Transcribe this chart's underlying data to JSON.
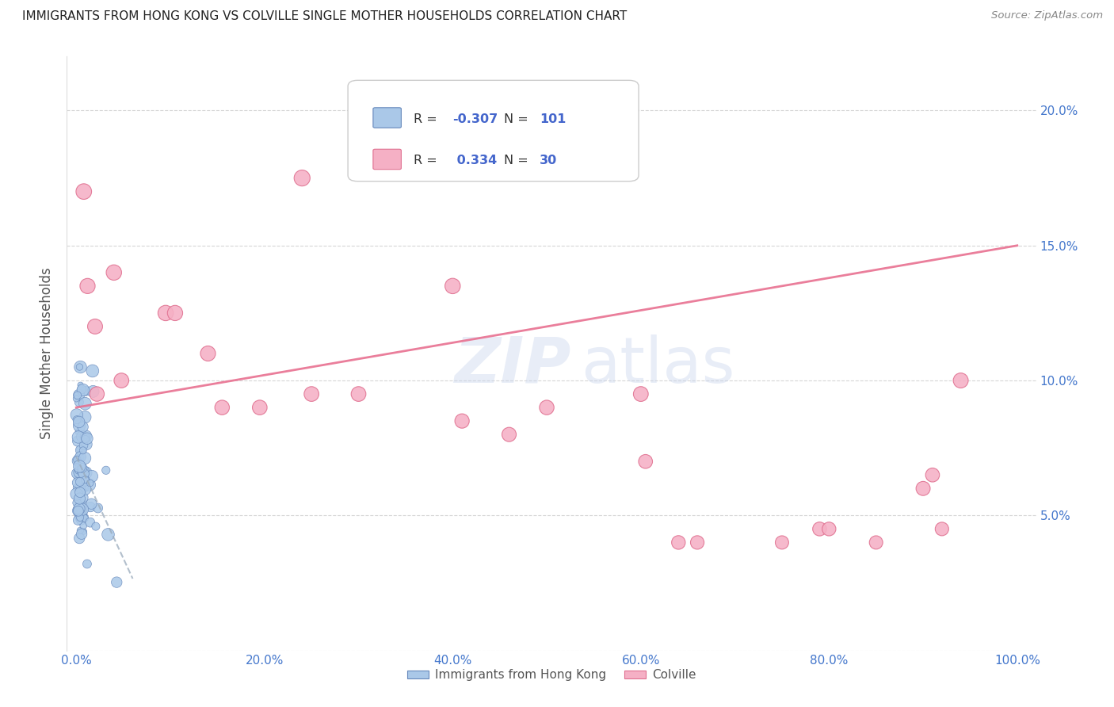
{
  "title": "IMMIGRANTS FROM HONG KONG VS COLVILLE SINGLE MOTHER HOUSEHOLDS CORRELATION CHART",
  "source": "Source: ZipAtlas.com",
  "ylabel": "Single Mother Households",
  "yticks": [
    0.0,
    0.05,
    0.1,
    0.15,
    0.2
  ],
  "ytick_labels": [
    "",
    "5.0%",
    "10.0%",
    "15.0%",
    "20.0%"
  ],
  "xtick_labels": [
    "0.0%",
    "20.0%",
    "40.0%",
    "60.0%",
    "80.0%",
    "100.0%"
  ],
  "xticks": [
    0.0,
    0.2,
    0.4,
    0.6,
    0.8,
    1.0
  ],
  "xlim": [
    -0.01,
    1.02
  ],
  "ylim": [
    0.0,
    0.22
  ],
  "blue_R": -0.307,
  "blue_N": 101,
  "pink_R": 0.334,
  "pink_N": 30,
  "blue_color": "#aac8e8",
  "pink_color": "#f5b0c5",
  "blue_edge": "#6688bb",
  "pink_edge": "#e07090",
  "trendline_blue_color": "#99aabb",
  "trendline_pink_color": "#e87090",
  "background_color": "#ffffff",
  "legend_label_blue": "Immigrants from Hong Kong",
  "legend_label_pink": "Colville",
  "legend_R_color": "#4466cc",
  "legend_N_color": "#4466cc",
  "pink_scatter_x": [
    0.008,
    0.012,
    0.02,
    0.022,
    0.04,
    0.048,
    0.095,
    0.105,
    0.14,
    0.155,
    0.195,
    0.24,
    0.25,
    0.3,
    0.4,
    0.41,
    0.46,
    0.5,
    0.6,
    0.605,
    0.64,
    0.66,
    0.75,
    0.79,
    0.8,
    0.85,
    0.9,
    0.91,
    0.92,
    0.94
  ],
  "pink_scatter_y": [
    0.17,
    0.135,
    0.12,
    0.095,
    0.14,
    0.1,
    0.125,
    0.125,
    0.11,
    0.09,
    0.09,
    0.175,
    0.095,
    0.095,
    0.135,
    0.085,
    0.08,
    0.09,
    0.095,
    0.07,
    0.04,
    0.04,
    0.04,
    0.045,
    0.045,
    0.04,
    0.06,
    0.065,
    0.045,
    0.1
  ],
  "pink_scatter_size": [
    200,
    190,
    185,
    175,
    195,
    180,
    195,
    192,
    188,
    175,
    178,
    210,
    180,
    180,
    195,
    170,
    168,
    175,
    182,
    160,
    155,
    152,
    148,
    158,
    155,
    148,
    165,
    160,
    150,
    185
  ]
}
